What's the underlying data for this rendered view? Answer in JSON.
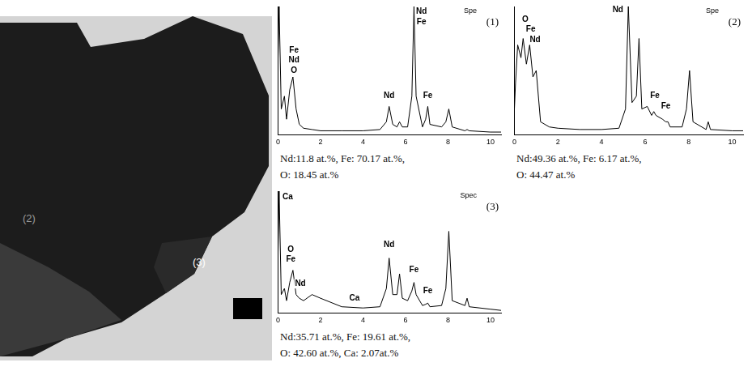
{
  "micrograph": {
    "labels": [
      "(2)",
      "(3)"
    ]
  },
  "chart_data": [
    {
      "type": "line",
      "title": "(1)",
      "subtitle": "Spe",
      "x": [
        0,
        0.05,
        0.15,
        0.3,
        0.4,
        0.55,
        0.7,
        0.85,
        1.0,
        1.2,
        1.6,
        2,
        3,
        4,
        4.8,
        5.1,
        5.23,
        5.4,
        5.6,
        5.72,
        5.85,
        6.1,
        6.3,
        6.4,
        6.5,
        6.8,
        6.95,
        7.05,
        7.15,
        7.7,
        7.9,
        8.04,
        8.2,
        8.8,
        8.9,
        9.0,
        10,
        10.5
      ],
      "values": [
        60,
        100,
        20,
        30,
        12,
        35,
        45,
        20,
        8,
        5,
        4,
        3,
        3,
        3,
        4,
        10,
        22,
        8,
        6,
        10,
        6,
        6,
        30,
        100,
        30,
        6,
        12,
        22,
        8,
        6,
        10,
        20,
        6,
        3,
        4,
        3,
        2,
        2
      ],
      "color": "#000000",
      "xlim": [
        0,
        10.5
      ],
      "xticks": [
        0,
        2,
        4,
        6,
        8,
        10
      ],
      "ylim": [
        0,
        100
      ],
      "grid": false,
      "tick_labels": "x",
      "annotations": [
        {
          "text": "Fe",
          "x": 0.75,
          "y": 66
        },
        {
          "text": "Nd",
          "x": 0.75,
          "y": 58
        },
        {
          "text": "O",
          "x": 0.75,
          "y": 50
        },
        {
          "text": "Nd",
          "x": 5.23,
          "y": 30
        },
        {
          "text": "Nd",
          "x": 6.75,
          "y": 96
        },
        {
          "text": "Fe",
          "x": 6.75,
          "y": 88
        },
        {
          "text": "Fe",
          "x": 7.05,
          "y": 30
        }
      ],
      "caption": [
        "Nd:11.8 at.%, Fe: 70.17 at.%,",
        "O: 18.45 at.%"
      ]
    },
    {
      "type": "line",
      "title": "(2)",
      "subtitle": "Spe",
      "x": [
        0,
        0.05,
        0.15,
        0.3,
        0.4,
        0.55,
        0.7,
        0.85,
        1.0,
        1.2,
        1.6,
        2,
        3,
        4,
        4.8,
        5.1,
        5.23,
        5.4,
        5.6,
        5.72,
        5.85,
        6.1,
        6.3,
        6.4,
        6.5,
        6.8,
        6.95,
        7.05,
        7.15,
        7.7,
        7.9,
        8.04,
        8.2,
        8.8,
        8.9,
        9.0,
        10,
        10.5
      ],
      "values": [
        20,
        40,
        70,
        60,
        75,
        55,
        70,
        45,
        50,
        10,
        6,
        5,
        4,
        4,
        5,
        20,
        100,
        25,
        30,
        75,
        20,
        22,
        15,
        18,
        15,
        12,
        10,
        10,
        6,
        6,
        20,
        50,
        10,
        4,
        10,
        4,
        3,
        3
      ],
      "color": "#000000",
      "xlim": [
        0,
        10.5
      ],
      "xticks": [
        0,
        2,
        4,
        6,
        8,
        10
      ],
      "ylim": [
        0,
        100
      ],
      "grid": false,
      "tick_labels": "x",
      "annotations": [
        {
          "text": "O",
          "x": 0.5,
          "y": 90
        },
        {
          "text": "Fe",
          "x": 0.75,
          "y": 82
        },
        {
          "text": "Nd",
          "x": 0.95,
          "y": 74
        },
        {
          "text": "Nd",
          "x": 4.75,
          "y": 97
        },
        {
          "text": "Fe",
          "x": 6.45,
          "y": 30
        },
        {
          "text": "Fe",
          "x": 6.95,
          "y": 22
        }
      ],
      "caption": [
        "Nd:49.36 at.%, Fe: 6.17 at.%,",
        "O: 44.47 at.%"
      ]
    },
    {
      "type": "line",
      "title": "(3)",
      "subtitle": "Spec",
      "x": [
        0,
        0.05,
        0.15,
        0.3,
        0.4,
        0.55,
        0.7,
        0.85,
        1.0,
        1.2,
        1.6,
        2,
        3,
        4,
        4.8,
        5.1,
        5.23,
        5.4,
        5.6,
        5.72,
        5.85,
        6.1,
        6.3,
        6.4,
        6.5,
        6.8,
        6.95,
        7.05,
        7.15,
        7.7,
        7.9,
        8.04,
        8.2,
        8.8,
        8.9,
        9.0,
        10,
        10.5
      ],
      "values": [
        50,
        100,
        15,
        20,
        10,
        25,
        35,
        15,
        12,
        10,
        15,
        12,
        5,
        4,
        5,
        20,
        45,
        15,
        15,
        32,
        12,
        10,
        18,
        25,
        15,
        6,
        7,
        8,
        5,
        6,
        20,
        67,
        10,
        6,
        12,
        5,
        3,
        2
      ],
      "color": "#000000",
      "xlim": [
        0,
        10.5
      ],
      "xticks": [
        0,
        2,
        4,
        6,
        8,
        10
      ],
      "ylim": [
        0,
        100
      ],
      "grid": false,
      "tick_labels": "x",
      "annotations": [
        {
          "text": "Ca",
          "x": 0.45,
          "y": 95
        },
        {
          "text": "O",
          "x": 0.6,
          "y": 52
        },
        {
          "text": "Fe",
          "x": 0.6,
          "y": 44
        },
        {
          "text": "Nd",
          "x": 1.05,
          "y": 24
        },
        {
          "text": "Ca",
          "x": 3.6,
          "y": 12
        },
        {
          "text": "Nd",
          "x": 5.23,
          "y": 56
        },
        {
          "text": "Fe",
          "x": 6.4,
          "y": 35
        },
        {
          "text": "Fe",
          "x": 7.05,
          "y": 18
        }
      ],
      "caption": [
        "Nd:35.71 at.%, Fe: 19.61 at.%,",
        "O: 42.60 at.%, Ca: 2.07at.%"
      ]
    }
  ]
}
